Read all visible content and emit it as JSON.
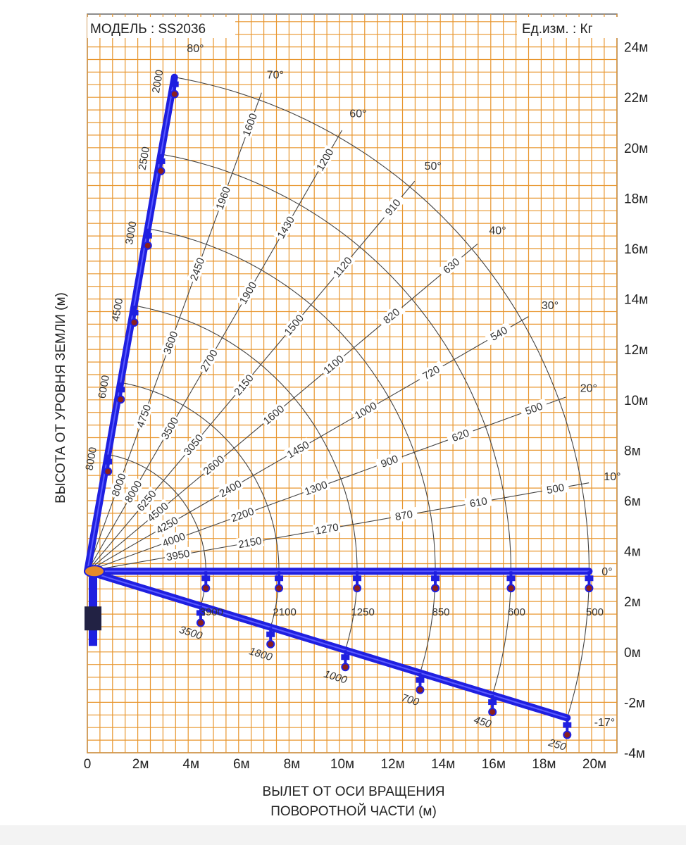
{
  "chart_data": {
    "type": "line",
    "model_label": "МОДЕЛЬ : SS2036",
    "unit_label": "Ед.изм. : Кг",
    "xlabel": [
      "ВЫЛЕТ ОТ ОСИ ВРАЩЕНИЯ",
      "ПОВОРОТНОЙ ЧАСТИ (м)"
    ],
    "ylabel": "ВЫСОТА ОТ УРОВНЯ ЗЕМЛИ (м)",
    "xlim": [
      0,
      21
    ],
    "ylim": [
      -4,
      24
    ],
    "x_ticks": [
      {
        "value": 0,
        "label": "0"
      },
      {
        "value": 2,
        "label": "2м"
      },
      {
        "value": 4,
        "label": "4м"
      },
      {
        "value": 6,
        "label": "6м"
      },
      {
        "value": 8,
        "label": "8м"
      },
      {
        "value": 10,
        "label": "10м"
      },
      {
        "value": 12,
        "label": "12м"
      },
      {
        "value": 14,
        "label": "14м"
      },
      {
        "value": 16,
        "label": "16м"
      },
      {
        "value": 18,
        "label": "18м"
      },
      {
        "value": 20,
        "label": "20м"
      }
    ],
    "y_ticks": [
      {
        "value": 24,
        "label": "24м"
      },
      {
        "value": 22,
        "label": "22м"
      },
      {
        "value": 20,
        "label": "20м"
      },
      {
        "value": 18,
        "label": "18м"
      },
      {
        "value": 16,
        "label": "16м"
      },
      {
        "value": 14,
        "label": "14м"
      },
      {
        "value": 12,
        "label": "12м"
      },
      {
        "value": 10,
        "label": "10м"
      },
      {
        "value": 8,
        "label": "8м"
      },
      {
        "value": 6,
        "label": "6м"
      },
      {
        "value": 4,
        "label": "4м"
      },
      {
        "value": 2,
        "label": "2м"
      },
      {
        "value": 0,
        "label": "0м"
      },
      {
        "value": -2,
        "label": "-2м"
      },
      {
        "value": -4,
        "label": "-4м"
      }
    ],
    "grid": true,
    "boom_pivot": {
      "x": 0,
      "y": 3.2
    },
    "boom_angles": [
      80,
      70,
      60,
      50,
      40,
      30,
      20,
      10,
      0,
      -17
    ],
    "angle_labels": [
      "80°",
      "70°",
      "60°",
      "50°",
      "40°",
      "30°",
      "20°",
      "10°",
      "0°",
      "-17°"
    ],
    "boom_sections_m": [
      4.7,
      7.6,
      10.7,
      13.8,
      16.8,
      19.9
    ],
    "capacities_kg": {
      "80": [
        "8000",
        "6000",
        "4500",
        "3000",
        "2500",
        "2000"
      ],
      "70": [
        "8000",
        "4750",
        "3600",
        "2450",
        "1960",
        "1600"
      ],
      "60": [
        "8000",
        "3500",
        "2700",
        "1900",
        "1430",
        "1200"
      ],
      "50": [
        "6250",
        "3050",
        "2150",
        "1500",
        "1120",
        "910"
      ],
      "40": [
        "4500",
        "2600",
        "1600",
        "1100",
        "820",
        "630"
      ],
      "30": [
        "4250",
        "2400",
        "1450",
        "1000",
        "720",
        "540"
      ],
      "20": [
        "4000",
        "2200",
        "1300",
        "900",
        "620",
        "500"
      ],
      "10": [
        "3950",
        "2150",
        "1270",
        "870",
        "610",
        "500"
      ],
      "0": [
        "3900",
        "2100",
        "1250",
        "850",
        "600",
        "500"
      ],
      "-17": [
        "3500",
        "1800",
        "1000",
        "700",
        "450",
        "250"
      ]
    }
  },
  "colors": {
    "grid": "#e8962e",
    "boom": "#1f1fe0",
    "curves": "#444444",
    "hook": "#8a1f1f"
  }
}
